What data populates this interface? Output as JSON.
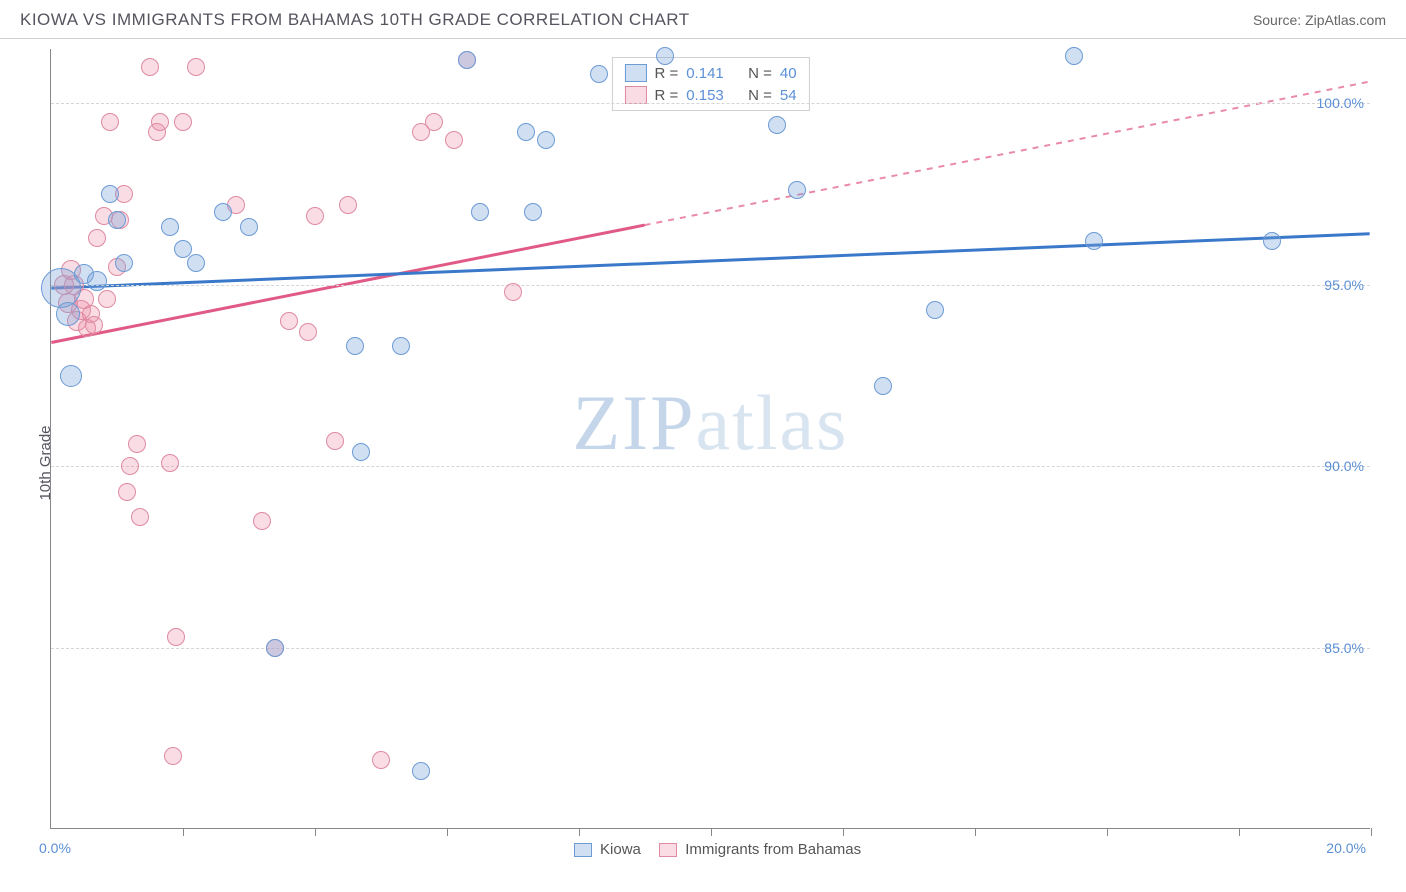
{
  "header": {
    "title": "KIOWA VS IMMIGRANTS FROM BAHAMAS 10TH GRADE CORRELATION CHART",
    "source": "Source: ZipAtlas.com"
  },
  "ylabel": "10th Grade",
  "watermark": {
    "a": "ZIP",
    "b": "atlas"
  },
  "chart": {
    "type": "scatter",
    "xlim": [
      0.0,
      20.0
    ],
    "ylim": [
      80.0,
      101.5
    ],
    "xlabel_min": "0.0%",
    "xlabel_max": "20.0%",
    "xtick_positions": [
      2.0,
      4.0,
      6.0,
      8.0,
      10.0,
      12.0,
      14.0,
      16.0,
      18.0,
      20.0
    ],
    "grid_y": [
      {
        "v": 100.0,
        "label": "100.0%"
      },
      {
        "v": 95.0,
        "label": "95.0%"
      },
      {
        "v": 90.0,
        "label": "90.0%"
      },
      {
        "v": 85.0,
        "label": "85.0%"
      }
    ],
    "background_color": "#ffffff",
    "grid_color": "#d5d5d5",
    "axis_color": "#888888",
    "series": {
      "kiowa": {
        "label": "Kiowa",
        "fill": "rgba(119,164,219,0.35)",
        "stroke": "#6c9bd6",
        "line_color": "#3a78c9",
        "r_label": "R =",
        "r_value": "0.141",
        "n_label": "N =",
        "n_value": "40",
        "trend": {
          "x1": 0.0,
          "y1": 94.9,
          "x2": 20.0,
          "y2": 96.4,
          "solid_until": 20.0
        },
        "points": [
          [
            0.15,
            94.9,
            20
          ],
          [
            0.25,
            94.2,
            12
          ],
          [
            0.3,
            92.5,
            11
          ],
          [
            0.5,
            95.3,
            10
          ],
          [
            0.7,
            95.1,
            10
          ],
          [
            0.9,
            97.5,
            9
          ],
          [
            1.0,
            96.8,
            9
          ],
          [
            1.1,
            95.6,
            9
          ],
          [
            1.8,
            96.6,
            9
          ],
          [
            2.0,
            96.0,
            9
          ],
          [
            2.2,
            95.6,
            9
          ],
          [
            2.6,
            97.0,
            9
          ],
          [
            3.0,
            96.6,
            9
          ],
          [
            4.6,
            93.3,
            9
          ],
          [
            4.7,
            90.4,
            9
          ],
          [
            5.3,
            93.3,
            9
          ],
          [
            6.3,
            101.2,
            9
          ],
          [
            6.5,
            97.0,
            9
          ],
          [
            7.2,
            99.2,
            9
          ],
          [
            7.3,
            97.0,
            9
          ],
          [
            7.5,
            99.0,
            9
          ],
          [
            8.3,
            100.8,
            9
          ],
          [
            9.3,
            101.3,
            9
          ],
          [
            11.0,
            99.4,
            9
          ],
          [
            11.3,
            97.6,
            9
          ],
          [
            12.6,
            92.2,
            9
          ],
          [
            13.4,
            94.3,
            9
          ],
          [
            15.5,
            101.3,
            9
          ],
          [
            15.8,
            96.2,
            9
          ],
          [
            18.5,
            96.2,
            9
          ],
          [
            3.4,
            85.0,
            9
          ],
          [
            5.6,
            81.6,
            9
          ]
        ]
      },
      "bahamas": {
        "label": "Immigrants from Bahamas",
        "fill": "rgba(235,140,165,0.30)",
        "stroke": "#df8aa2",
        "line_color": "#e05a85",
        "r_label": "R =",
        "r_value": "0.153",
        "n_label": "N =",
        "n_value": "54",
        "trend": {
          "x1": 0.0,
          "y1": 93.4,
          "x2": 20.0,
          "y2": 100.6,
          "solid_until": 9.0
        },
        "points": [
          [
            0.2,
            95.0,
            10
          ],
          [
            0.25,
            94.5,
            10
          ],
          [
            0.3,
            95.4,
            10
          ],
          [
            0.35,
            95.0,
            10
          ],
          [
            0.4,
            94.0,
            10
          ],
          [
            0.45,
            94.3,
            10
          ],
          [
            0.5,
            94.6,
            10
          ],
          [
            0.55,
            93.8,
            9
          ],
          [
            0.6,
            94.2,
            9
          ],
          [
            0.65,
            93.9,
            9
          ],
          [
            0.7,
            96.3,
            9
          ],
          [
            0.8,
            96.9,
            9
          ],
          [
            0.85,
            94.6,
            9
          ],
          [
            0.9,
            99.5,
            9
          ],
          [
            1.0,
            95.5,
            9
          ],
          [
            1.05,
            96.8,
            9
          ],
          [
            1.1,
            97.5,
            9
          ],
          [
            1.15,
            89.3,
            9
          ],
          [
            1.2,
            90.0,
            9
          ],
          [
            1.3,
            90.6,
            9
          ],
          [
            1.35,
            88.6,
            9
          ],
          [
            1.5,
            101.0,
            9
          ],
          [
            1.6,
            99.2,
            9
          ],
          [
            1.65,
            99.5,
            9
          ],
          [
            1.8,
            90.1,
            9
          ],
          [
            1.85,
            82.0,
            9
          ],
          [
            1.9,
            85.3,
            9
          ],
          [
            2.0,
            99.5,
            9
          ],
          [
            2.2,
            101.0,
            9
          ],
          [
            2.8,
            97.2,
            9
          ],
          [
            3.2,
            88.5,
            9
          ],
          [
            3.4,
            85.0,
            9
          ],
          [
            3.6,
            94.0,
            9
          ],
          [
            3.9,
            93.7,
            9
          ],
          [
            4.0,
            96.9,
            9
          ],
          [
            4.3,
            90.7,
            9
          ],
          [
            4.5,
            97.2,
            9
          ],
          [
            5.0,
            81.9,
            9
          ],
          [
            5.6,
            99.2,
            9
          ],
          [
            5.8,
            99.5,
            9
          ],
          [
            6.1,
            99.0,
            9
          ],
          [
            6.3,
            101.2,
            9
          ],
          [
            7.0,
            94.8,
            9
          ]
        ]
      }
    }
  }
}
